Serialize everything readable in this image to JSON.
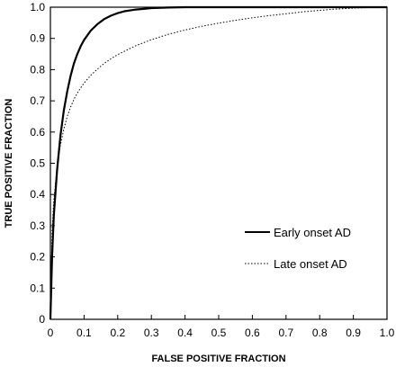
{
  "chart_data": {
    "type": "line",
    "title": "",
    "xlabel": "FALSE POSITIVE FRACTION",
    "ylabel": "TRUE POSITIVE FRACTION",
    "xlim": [
      0,
      1.0
    ],
    "ylim": [
      0,
      1.0
    ],
    "grid": false,
    "legend_position": "right",
    "x_ticks": [
      "0",
      "0.1",
      "0.2",
      "0.3",
      "0.4",
      "0.5",
      "0.6",
      "0.7",
      "0.8",
      "0.9",
      "1.0"
    ],
    "y_ticks": [
      "0",
      "0.1",
      "0.2",
      "0.3",
      "0.4",
      "0.5",
      "0.6",
      "0.7",
      "0.8",
      "0.9",
      "1.0"
    ],
    "series": [
      {
        "name": "Early onset AD",
        "style": "solid",
        "color": "#000000",
        "x": [
          0,
          0.005,
          0.01,
          0.02,
          0.03,
          0.04,
          0.05,
          0.06,
          0.07,
          0.08,
          0.09,
          0.1,
          0.12,
          0.14,
          0.16,
          0.18,
          0.2,
          0.22,
          0.25,
          0.28,
          0.3,
          0.35,
          0.4,
          0.5,
          0.6,
          0.7,
          0.8,
          0.9,
          1.0
        ],
        "y": [
          0,
          0.2,
          0.33,
          0.48,
          0.59,
          0.67,
          0.73,
          0.78,
          0.82,
          0.85,
          0.875,
          0.895,
          0.925,
          0.946,
          0.962,
          0.973,
          0.981,
          0.987,
          0.992,
          0.995,
          0.997,
          0.999,
          1.0,
          1.0,
          1.0,
          1.0,
          1.0,
          1.0,
          1.0
        ]
      },
      {
        "name": "Late onset AD",
        "style": "dotted",
        "color": "#000000",
        "x": [
          0,
          0.005,
          0.01,
          0.02,
          0.03,
          0.04,
          0.05,
          0.06,
          0.07,
          0.08,
          0.09,
          0.1,
          0.12,
          0.14,
          0.16,
          0.18,
          0.2,
          0.25,
          0.3,
          0.35,
          0.4,
          0.45,
          0.5,
          0.55,
          0.6,
          0.65,
          0.7,
          0.75,
          0.8,
          0.85,
          0.9,
          0.95,
          1.0
        ],
        "y": [
          0,
          0.28,
          0.38,
          0.49,
          0.56,
          0.61,
          0.65,
          0.68,
          0.705,
          0.725,
          0.742,
          0.757,
          0.782,
          0.802,
          0.82,
          0.835,
          0.848,
          0.875,
          0.896,
          0.913,
          0.927,
          0.939,
          0.949,
          0.958,
          0.966,
          0.973,
          0.979,
          0.985,
          0.99,
          0.994,
          0.997,
          0.999,
          1.0
        ]
      }
    ]
  }
}
